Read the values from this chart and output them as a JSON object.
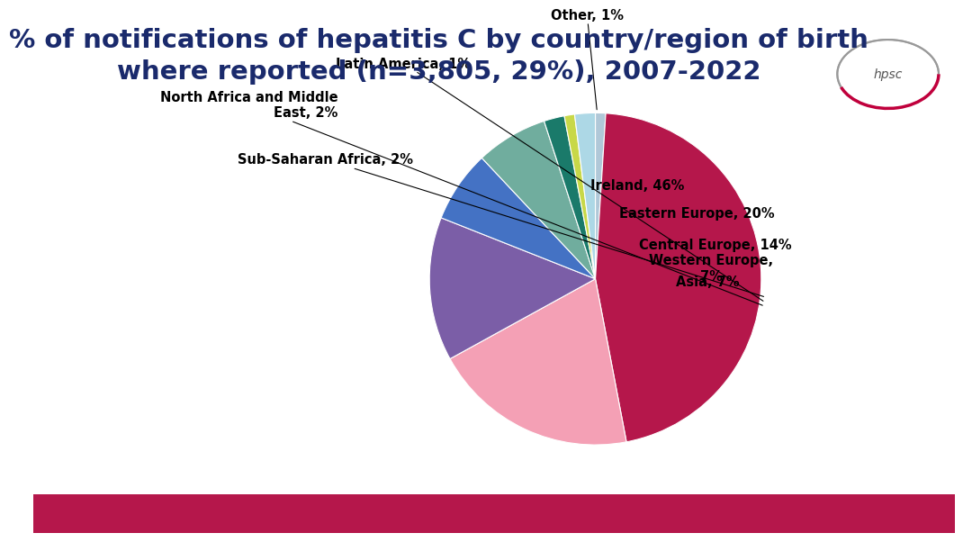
{
  "title": "% of notifications of hepatitis C by country/region of birth\nwhere reported (n=3,805, 29%), 2007-2022",
  "title_color": "#1a2a6c",
  "background_color": "#ffffff",
  "slices": [
    {
      "label": "Other, 1%",
      "value": 1,
      "color": "#b0c8d8"
    },
    {
      "label": "Ireland, 46%",
      "value": 46,
      "color": "#b5174b"
    },
    {
      "label": "Eastern Europe, 20%",
      "value": 20,
      "color": "#f4a0b5"
    },
    {
      "label": "Central Europe, 14%",
      "value": 14,
      "color": "#7b5ea7"
    },
    {
      "label": "Western Europe,\n7%",
      "value": 7,
      "color": "#4472c4"
    },
    {
      "label": "Asia, 7%",
      "value": 7,
      "color": "#70ad9e"
    },
    {
      "label": "Sub-Saharan Africa, 2%",
      "value": 2,
      "color": "#1a7a6a"
    },
    {
      "label": "Latin America, 1%",
      "value": 1,
      "color": "#c8d848"
    },
    {
      "label": "North Africa and Middle\nEast, 2%",
      "value": 2,
      "color": "#add8e6"
    }
  ],
  "footer_color": "#b5174b",
  "label_fontsize": 10.5,
  "title_fontsize": 21
}
